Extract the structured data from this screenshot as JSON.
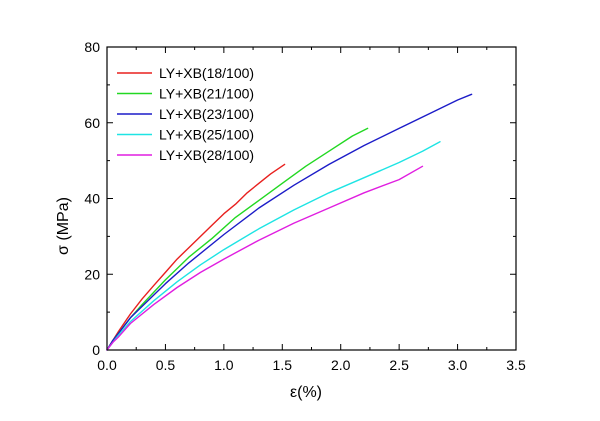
{
  "chart_data": {
    "type": "line",
    "title": "",
    "xlabel": "ε(%)",
    "ylabel": "σ (MPa)",
    "xlim": [
      0,
      3.5
    ],
    "ylim": [
      0,
      80
    ],
    "xticks": [
      0.0,
      0.5,
      1.0,
      1.5,
      2.0,
      2.5,
      3.0,
      3.5
    ],
    "xtick_labels": [
      "0.0",
      "0.5",
      "1.0",
      "1.5",
      "2.0",
      "2.5",
      "3.0",
      "3.5"
    ],
    "yticks": [
      0,
      20,
      40,
      60,
      80
    ],
    "ytick_labels": [
      "0",
      "20",
      "40",
      "60",
      "80"
    ],
    "grid": false,
    "legend_position": "top-left",
    "series": [
      {
        "name": "LY+XB(18/100)",
        "color": "#e8201e",
        "x": [
          0,
          0.05,
          0.1,
          0.2,
          0.3,
          0.4,
          0.5,
          0.6,
          0.7,
          0.8,
          0.9,
          1.0,
          1.1,
          1.2,
          1.3,
          1.4,
          1.52
        ],
        "y": [
          0,
          2.5,
          5,
          9.5,
          13.5,
          17,
          20.5,
          24,
          27,
          30,
          33,
          36,
          38.5,
          41.5,
          44,
          46.5,
          49
        ]
      },
      {
        "name": "LY+XB(21/100)",
        "color": "#22d822",
        "x": [
          0,
          0.05,
          0.1,
          0.2,
          0.3,
          0.5,
          0.7,
          0.9,
          1.1,
          1.3,
          1.5,
          1.7,
          1.9,
          2.1,
          2.23
        ],
        "y": [
          0,
          2.5,
          4.5,
          8.5,
          12,
          18.5,
          24.5,
          29.5,
          35,
          39.5,
          44,
          48.5,
          52.5,
          56.5,
          58.5
        ]
      },
      {
        "name": "LY+XB(23/100)",
        "color": "#1c1cc8",
        "x": [
          0,
          0.05,
          0.1,
          0.2,
          0.3,
          0.5,
          0.7,
          1.0,
          1.3,
          1.6,
          1.9,
          2.2,
          2.5,
          2.8,
          3.0,
          3.12
        ],
        "y": [
          0,
          2.5,
          4.5,
          8.5,
          11.5,
          17.5,
          23,
          30.5,
          37.5,
          43.5,
          49,
          54,
          58.5,
          63,
          66,
          67.5
        ]
      },
      {
        "name": "LY+XB(25/100)",
        "color": "#1ee4e4",
        "x": [
          0,
          0.05,
          0.1,
          0.2,
          0.4,
          0.6,
          0.8,
          1.0,
          1.3,
          1.6,
          1.9,
          2.2,
          2.5,
          2.7,
          2.85
        ],
        "y": [
          0,
          2,
          4,
          7.5,
          13,
          18,
          22.5,
          26.5,
          32,
          37,
          41.5,
          45.5,
          49.5,
          52.5,
          55
        ]
      },
      {
        "name": "LY+XB(28/100)",
        "color": "#e01ee0",
        "x": [
          0,
          0.05,
          0.1,
          0.2,
          0.4,
          0.6,
          0.8,
          1.0,
          1.3,
          1.6,
          1.9,
          2.2,
          2.5,
          2.7
        ],
        "y": [
          0,
          2,
          3.5,
          7,
          12,
          16.5,
          20.5,
          24,
          29,
          33.5,
          37.5,
          41.5,
          45,
          48.5
        ]
      }
    ]
  }
}
